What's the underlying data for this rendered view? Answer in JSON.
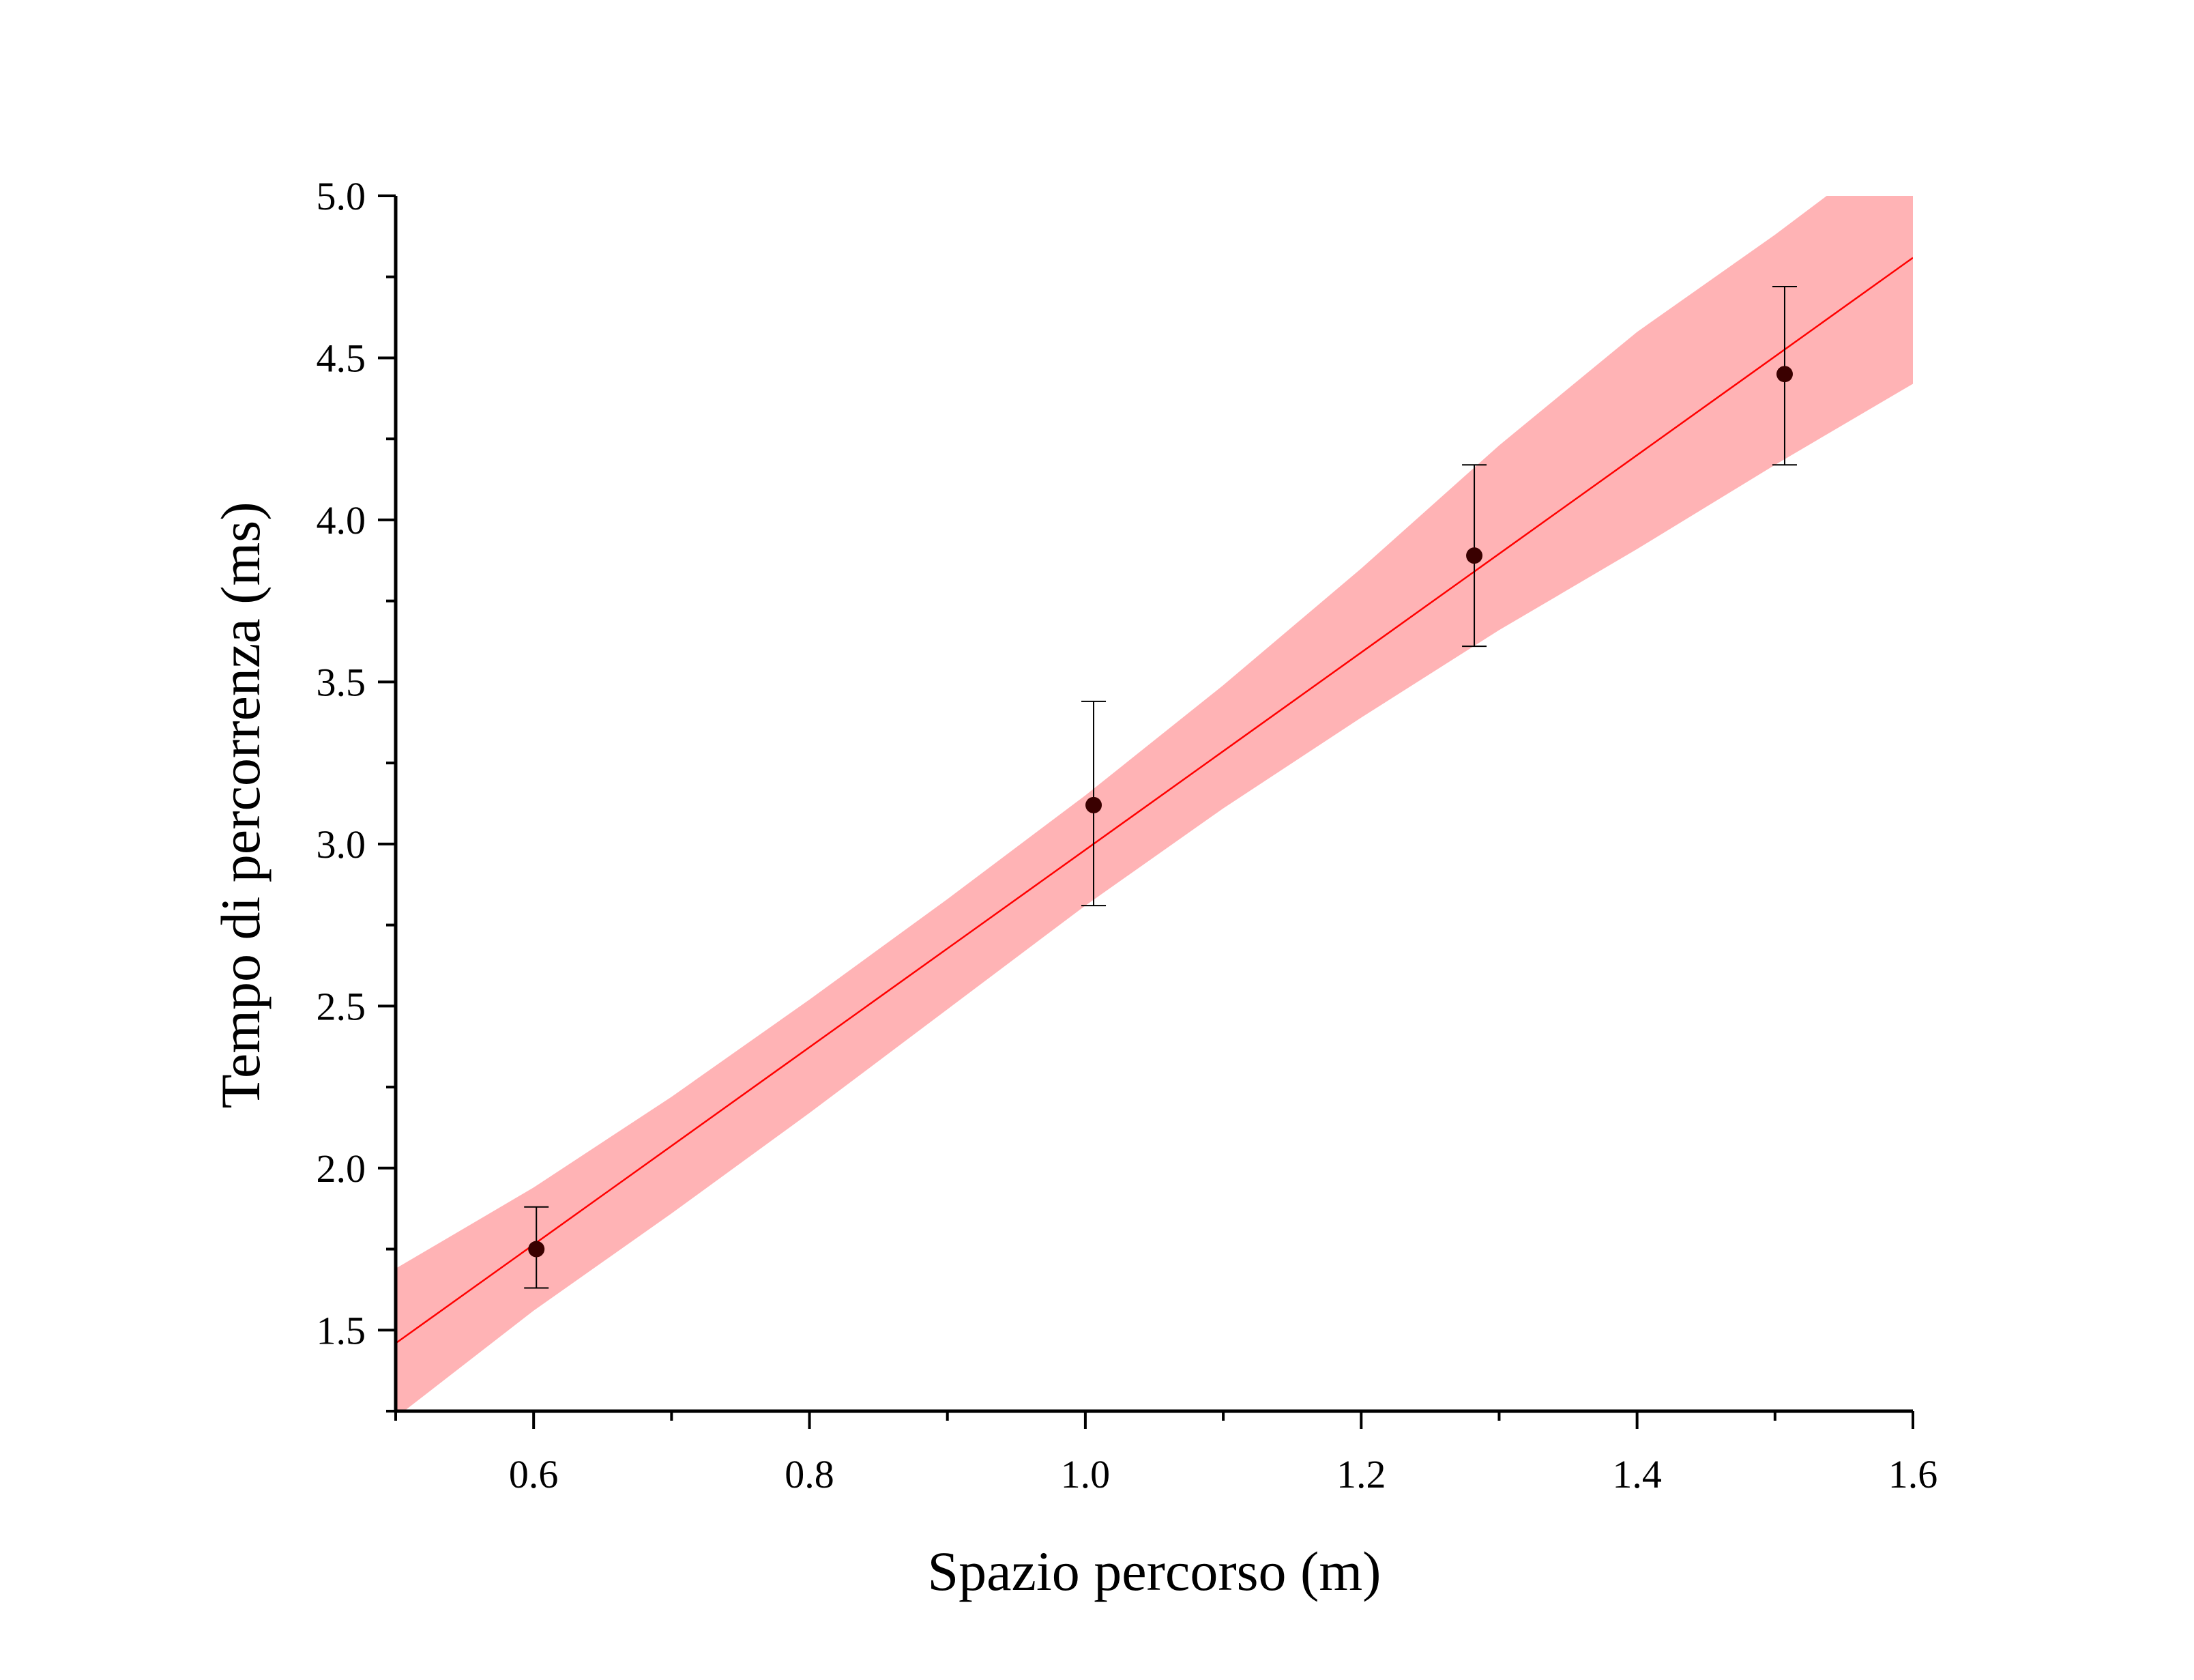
{
  "chart_data": {
    "type": "scatter",
    "title": "",
    "xlabel": "Spazio percorso (m)",
    "ylabel": "Tempo di percorrenza (ms)",
    "xlim": [
      0.5,
      1.6
    ],
    "ylim": [
      1.25,
      5.0
    ],
    "xticks": [
      0.6,
      0.8,
      1.0,
      1.2,
      1.4,
      1.6
    ],
    "xtick_labels": [
      "0.6",
      "0.8",
      "1.0",
      "1.2",
      "1.4",
      "1.6"
    ],
    "yticks": [
      1.5,
      2.0,
      2.5,
      3.0,
      3.5,
      4.0,
      4.5,
      5.0
    ],
    "ytick_labels": [
      "1.5",
      "2.0",
      "2.5",
      "3.0",
      "3.5",
      "4.0",
      "4.5",
      "5.0"
    ],
    "grid": false,
    "series": [
      {
        "type": "scatter-errorbar",
        "color": "#3a0000",
        "points": [
          {
            "x": 0.602,
            "y": 1.75,
            "yerr_low": 1.63,
            "yerr_high": 1.88
          },
          {
            "x": 1.006,
            "y": 3.12,
            "yerr_low": 2.81,
            "yerr_high": 3.44
          },
          {
            "x": 1.282,
            "y": 3.89,
            "yerr_low": 3.61,
            "yerr_high": 4.17
          },
          {
            "x": 1.507,
            "y": 4.45,
            "yerr_low": 4.17,
            "yerr_high": 4.72
          }
        ]
      },
      {
        "type": "fit-line",
        "color": "#ff0000",
        "slope": 3.045,
        "intercept": -0.063,
        "x_range": [
          0.5,
          1.6
        ]
      },
      {
        "type": "confidence-band",
        "color": "#ffb3b5",
        "x": [
          0.5,
          0.6,
          0.7,
          0.8,
          0.9,
          1.0,
          1.1,
          1.2,
          1.3,
          1.4,
          1.5,
          1.6
        ],
        "upper": [
          1.69,
          1.94,
          2.22,
          2.52,
          2.83,
          3.15,
          3.49,
          3.85,
          4.23,
          4.58,
          4.88,
          5.2
        ],
        "lower": [
          1.23,
          1.56,
          1.86,
          2.17,
          2.49,
          2.81,
          3.11,
          3.39,
          3.66,
          3.91,
          4.17,
          4.42
        ]
      }
    ]
  }
}
